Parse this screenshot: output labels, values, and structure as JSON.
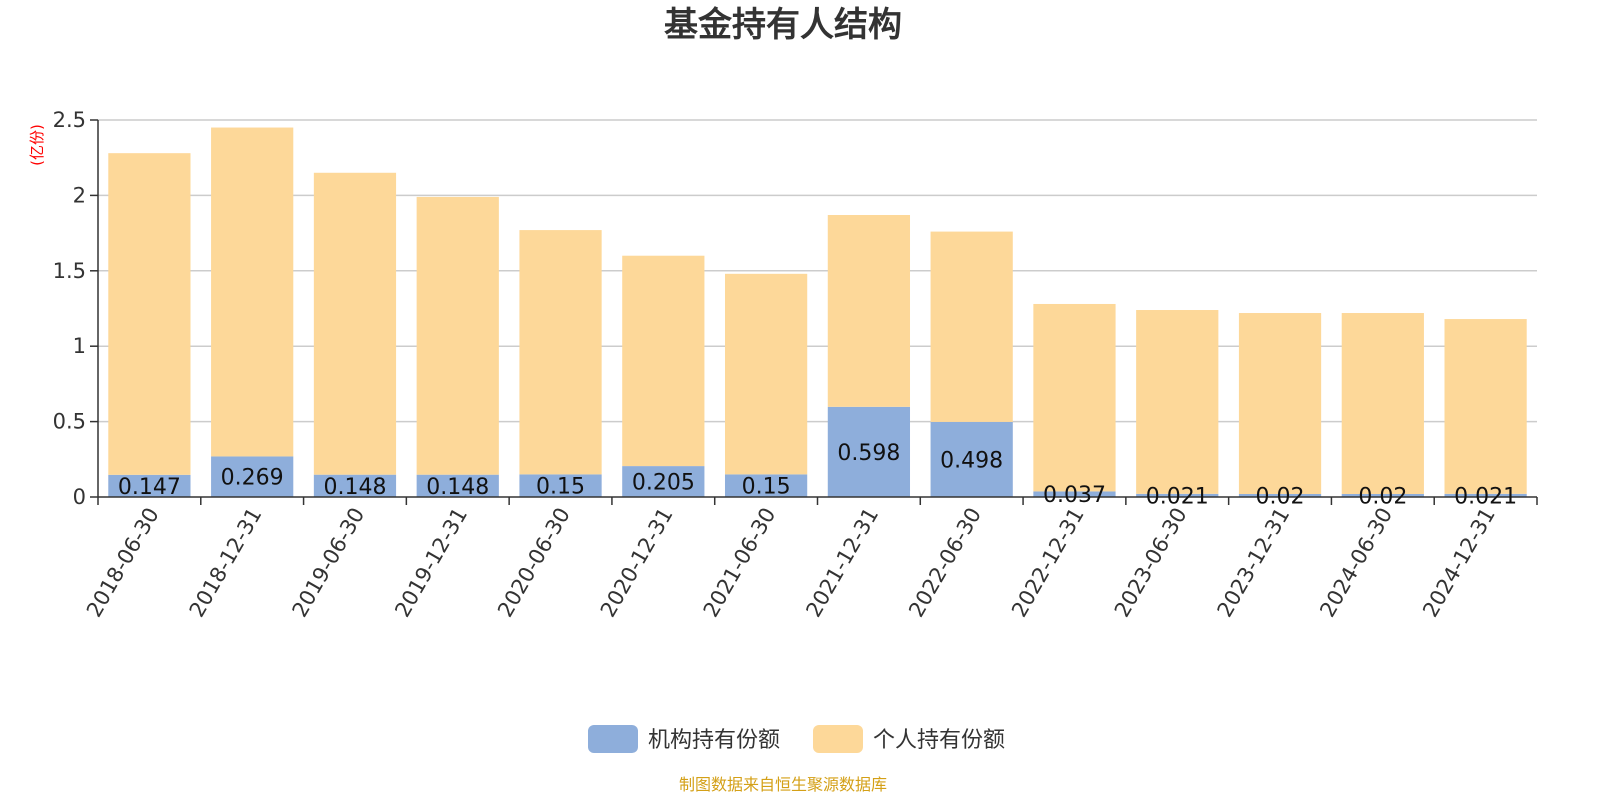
{
  "chart_data": {
    "type": "bar",
    "stacked": true,
    "title": "基金持有人结构",
    "y_unit": "(亿份)",
    "ylim": [
      0,
      2.5
    ],
    "yticks": [
      "0",
      "0.5",
      "1",
      "1.5",
      "2",
      "2.5"
    ],
    "grid": true,
    "legend_position": "bottom",
    "categories": [
      "2018-06-30",
      "2018-12-31",
      "2019-06-30",
      "2019-12-31",
      "2020-06-30",
      "2020-12-31",
      "2021-06-30",
      "2021-12-31",
      "2022-06-30",
      "2022-12-31",
      "2023-06-30",
      "2023-12-31",
      "2024-06-30",
      "2024-12-31"
    ],
    "series": [
      {
        "name": "机构持有份额",
        "color": "#8eaedb",
        "values": [
          0.147,
          0.269,
          0.148,
          0.148,
          0.15,
          0.205,
          0.15,
          0.598,
          0.498,
          0.037,
          0.021,
          0.02,
          0.02,
          0.021
        ],
        "labels": [
          "0.147",
          "0.269",
          "0.148",
          "0.148",
          "0.15",
          "0.205",
          "0.15",
          "0.598",
          "0.498",
          "0.037",
          "0.021",
          "0.02",
          "0.02",
          "0.021"
        ]
      },
      {
        "name": "个人持有份额",
        "color": "#fdd899",
        "values": [
          2.133,
          2.181,
          2.002,
          1.842,
          1.62,
          1.395,
          1.33,
          1.272,
          1.262,
          1.243,
          1.219,
          1.2,
          1.2,
          1.159
        ]
      }
    ],
    "source": "制图数据来自恒生聚源数据库"
  },
  "colors": {
    "grid": "#cccccc",
    "axis": "#333333",
    "unit": "#ff0000",
    "source": "#d4a017"
  }
}
